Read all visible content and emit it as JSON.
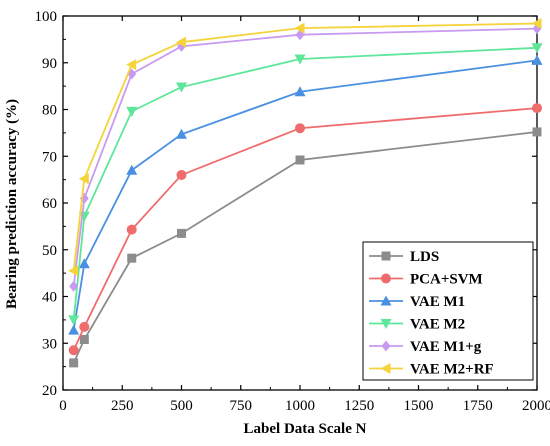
{
  "chart_data": {
    "type": "line",
    "xlabel": "Label Data Scale N",
    "ylabel": "Bearing prediction accuracy (%)",
    "xlim": [
      0,
      2000
    ],
    "ylim": [
      20,
      100
    ],
    "xticks": [
      0,
      250,
      500,
      750,
      1000,
      1250,
      1500,
      1750,
      2000
    ],
    "yticks": [
      20,
      30,
      40,
      50,
      60,
      70,
      80,
      90,
      100
    ],
    "grid": false,
    "legend_position": "bottom-right",
    "x": [
      45,
      90,
      290,
      500,
      1000,
      2000
    ],
    "series": [
      {
        "name": "LDS",
        "color": "#8c8c8c",
        "marker": "square",
        "values": [
          25.8,
          30.8,
          48.2,
          53.5,
          69.2,
          75.2
        ]
      },
      {
        "name": "PCA+SVM",
        "color": "#f06b6b",
        "marker": "circle",
        "values": [
          28.5,
          33.5,
          54.3,
          66.0,
          76.0,
          80.3
        ]
      },
      {
        "name": "VAE M1",
        "color": "#4a90e2",
        "marker": "triangle-up",
        "values": [
          32.8,
          47.0,
          67.0,
          74.7,
          83.8,
          90.5
        ]
      },
      {
        "name": "VAE M2",
        "color": "#5ee69a",
        "marker": "triangle-down",
        "values": [
          35.0,
          57.2,
          79.6,
          84.8,
          90.8,
          93.2
        ]
      },
      {
        "name": "VAE M1+g",
        "color": "#c89af0",
        "marker": "diamond",
        "values": [
          42.2,
          61.0,
          87.6,
          93.5,
          96.0,
          97.3
        ]
      },
      {
        "name": "VAE M2+RF",
        "color": "#f5d33a",
        "marker": "triangle-left",
        "values": [
          45.5,
          65.2,
          89.6,
          94.4,
          97.4,
          98.4
        ]
      }
    ]
  }
}
